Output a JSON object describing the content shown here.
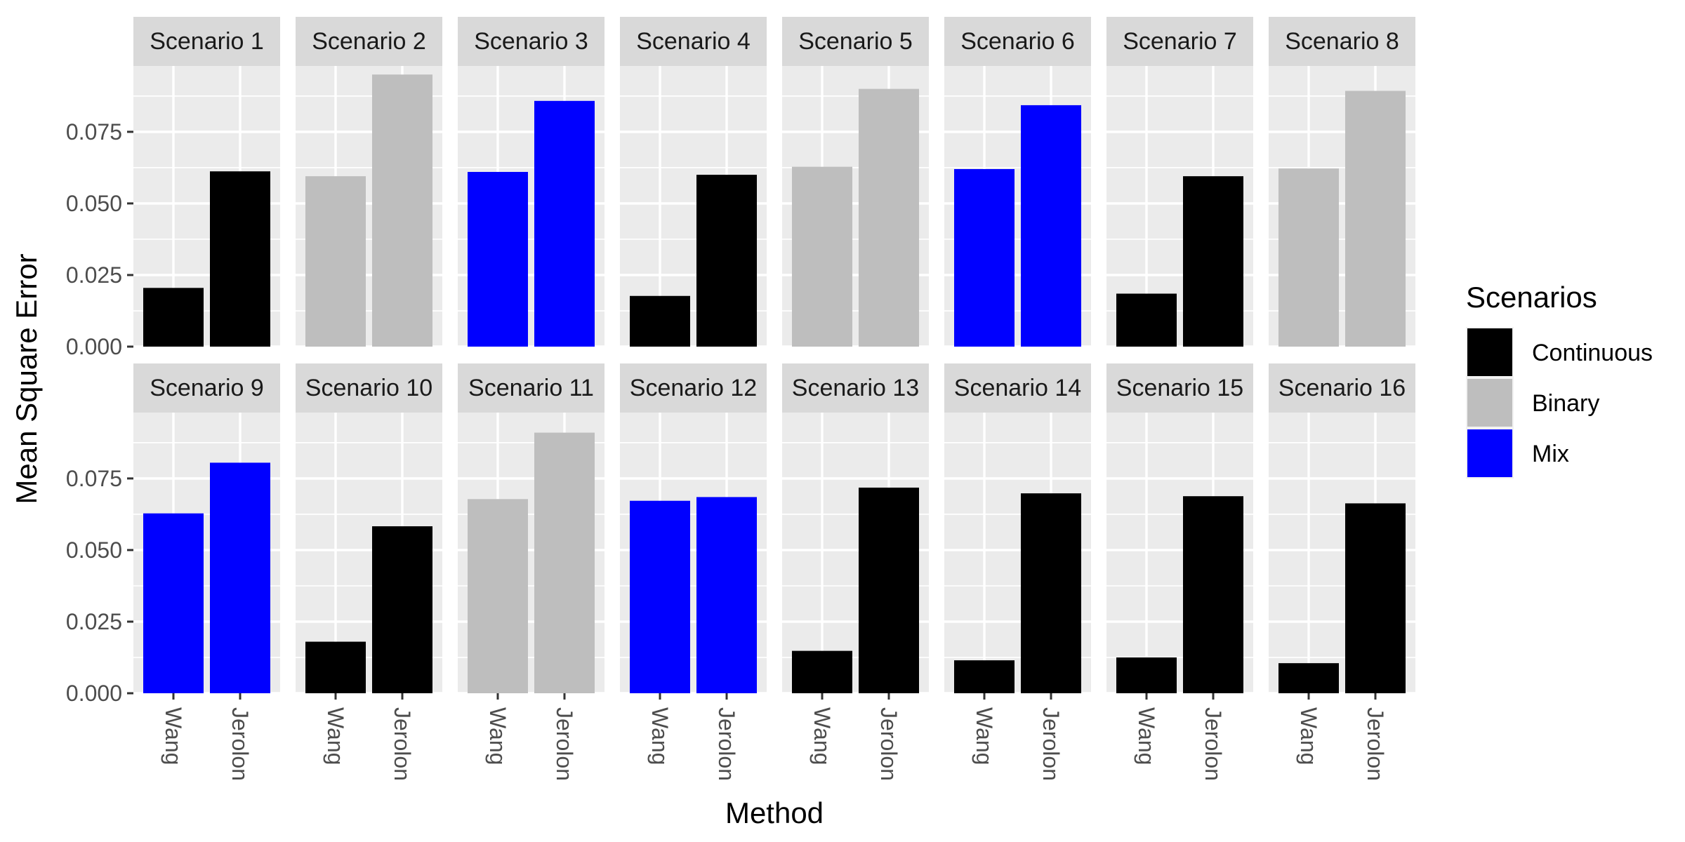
{
  "chart_data": {
    "type": "bar",
    "facet_layout": "2 rows x 8 columns",
    "xlabel": "Method",
    "ylabel": "Mean Square Error",
    "ylim": [
      0,
      0.098
    ],
    "yticks": [
      0.0,
      0.025,
      0.05,
      0.075
    ],
    "ytick_labels": [
      "0.000",
      "0.025",
      "0.050",
      "0.075"
    ],
    "categories": [
      "Wang",
      "Jerolon"
    ],
    "legend": {
      "title": "Scenarios",
      "position": "right",
      "entries": [
        {
          "label": "Continuous",
          "color": "#000000"
        },
        {
          "label": "Binary",
          "color": "#BEBEBE"
        },
        {
          "label": "Mix",
          "color": "#0000FF"
        }
      ]
    },
    "panels": [
      {
        "title": "Scenario 1",
        "type": "Continuous",
        "values": [
          0.0205,
          0.0612
        ]
      },
      {
        "title": "Scenario 2",
        "type": "Binary",
        "values": [
          0.0595,
          0.095
        ]
      },
      {
        "title": "Scenario 3",
        "type": "Mix",
        "values": [
          0.061,
          0.0858
        ]
      },
      {
        "title": "Scenario 4",
        "type": "Continuous",
        "values": [
          0.0177,
          0.06
        ]
      },
      {
        "title": "Scenario 5",
        "type": "Binary",
        "values": [
          0.0628,
          0.09
        ]
      },
      {
        "title": "Scenario 6",
        "type": "Mix",
        "values": [
          0.062,
          0.0843
        ]
      },
      {
        "title": "Scenario 7",
        "type": "Continuous",
        "values": [
          0.0185,
          0.0595
        ]
      },
      {
        "title": "Scenario 8",
        "type": "Binary",
        "values": [
          0.0622,
          0.0893
        ]
      },
      {
        "title": "Scenario 9",
        "type": "Mix",
        "values": [
          0.0628,
          0.0805
        ]
      },
      {
        "title": "Scenario 10",
        "type": "Continuous",
        "values": [
          0.018,
          0.0583
        ]
      },
      {
        "title": "Scenario 11",
        "type": "Binary",
        "values": [
          0.0678,
          0.091
        ]
      },
      {
        "title": "Scenario 12",
        "type": "Mix",
        "values": [
          0.0672,
          0.0685
        ]
      },
      {
        "title": "Scenario 13",
        "type": "Continuous",
        "values": [
          0.0148,
          0.0718
        ]
      },
      {
        "title": "Scenario 14",
        "type": "Continuous",
        "values": [
          0.0115,
          0.0698
        ]
      },
      {
        "title": "Scenario 15",
        "type": "Continuous",
        "values": [
          0.0125,
          0.0688
        ]
      },
      {
        "title": "Scenario 16",
        "type": "Continuous",
        "values": [
          0.0105,
          0.0663
        ]
      }
    ]
  }
}
